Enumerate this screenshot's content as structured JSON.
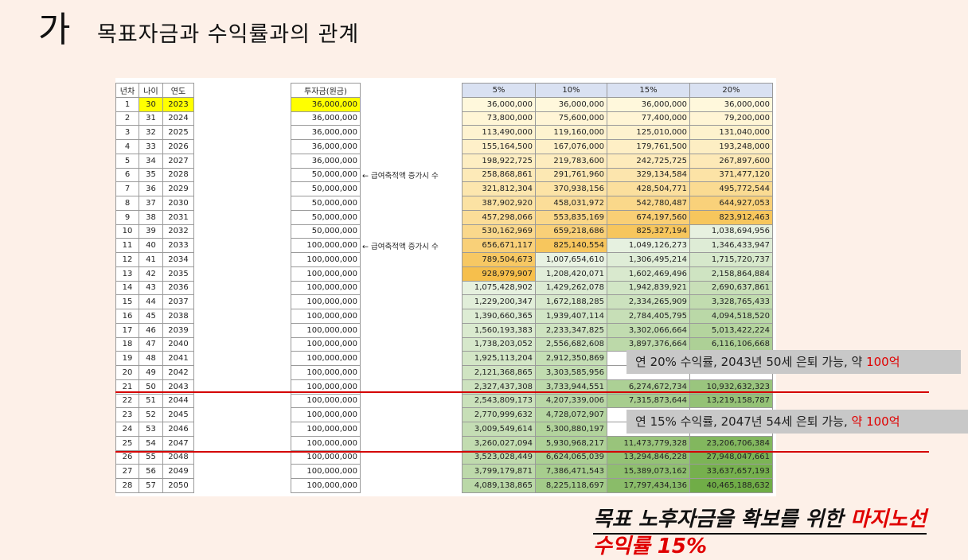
{
  "title": {
    "mark": "가",
    "text": "목표자금과 수익률과의 관계"
  },
  "headers": {
    "year_no": "년차",
    "age": "나이",
    "year": "연도",
    "invest": "투자금(원금)",
    "rates": [
      "5%",
      "10%",
      "15%",
      "20%"
    ]
  },
  "rows": [
    {
      "n": "1",
      "age": "30",
      "year": "2023",
      "inv": "36,000,000",
      "note": "",
      "v": [
        "36,000,000",
        "36,000,000",
        "36,000,000",
        "36,000,000"
      ]
    },
    {
      "n": "2",
      "age": "31",
      "year": "2024",
      "inv": "36,000,000",
      "note": "",
      "v": [
        "73,800,000",
        "75,600,000",
        "77,400,000",
        "79,200,000"
      ]
    },
    {
      "n": "3",
      "age": "32",
      "year": "2025",
      "inv": "36,000,000",
      "note": "",
      "v": [
        "113,490,000",
        "119,160,000",
        "125,010,000",
        "131,040,000"
      ]
    },
    {
      "n": "4",
      "age": "33",
      "year": "2026",
      "inv": "36,000,000",
      "note": "",
      "v": [
        "155,164,500",
        "167,076,000",
        "179,761,500",
        "193,248,000"
      ]
    },
    {
      "n": "5",
      "age": "34",
      "year": "2027",
      "inv": "36,000,000",
      "note": "",
      "v": [
        "198,922,725",
        "219,783,600",
        "242,725,725",
        "267,897,600"
      ]
    },
    {
      "n": "6",
      "age": "35",
      "year": "2028",
      "inv": "50,000,000",
      "note": "← 급여축적액 증가시 수",
      "v": [
        "258,868,861",
        "291,761,960",
        "329,134,584",
        "371,477,120"
      ]
    },
    {
      "n": "7",
      "age": "36",
      "year": "2029",
      "inv": "50,000,000",
      "note": "",
      "v": [
        "321,812,304",
        "370,938,156",
        "428,504,771",
        "495,772,544"
      ]
    },
    {
      "n": "8",
      "age": "37",
      "year": "2030",
      "inv": "50,000,000",
      "note": "",
      "v": [
        "387,902,920",
        "458,031,972",
        "542,780,487",
        "644,927,053"
      ]
    },
    {
      "n": "9",
      "age": "38",
      "year": "2031",
      "inv": "50,000,000",
      "note": "",
      "v": [
        "457,298,066",
        "553,835,169",
        "674,197,560",
        "823,912,463"
      ]
    },
    {
      "n": "10",
      "age": "39",
      "year": "2032",
      "inv": "50,000,000",
      "note": "",
      "v": [
        "530,162,969",
        "659,218,686",
        "825,327,194",
        "1,038,694,956"
      ]
    },
    {
      "n": "11",
      "age": "40",
      "year": "2033",
      "inv": "100,000,000",
      "note": "← 급여축적액 증가시 수",
      "v": [
        "656,671,117",
        "825,140,554",
        "1,049,126,273",
        "1,346,433,947"
      ]
    },
    {
      "n": "12",
      "age": "41",
      "year": "2034",
      "inv": "100,000,000",
      "note": "",
      "v": [
        "789,504,673",
        "1,007,654,610",
        "1,306,495,214",
        "1,715,720,737"
      ]
    },
    {
      "n": "13",
      "age": "42",
      "year": "2035",
      "inv": "100,000,000",
      "note": "",
      "v": [
        "928,979,907",
        "1,208,420,071",
        "1,602,469,496",
        "2,158,864,884"
      ]
    },
    {
      "n": "14",
      "age": "43",
      "year": "2036",
      "inv": "100,000,000",
      "note": "",
      "v": [
        "1,075,428,902",
        "1,429,262,078",
        "1,942,839,921",
        "2,690,637,861"
      ]
    },
    {
      "n": "15",
      "age": "44",
      "year": "2037",
      "inv": "100,000,000",
      "note": "",
      "v": [
        "1,229,200,347",
        "1,672,188,285",
        "2,334,265,909",
        "3,328,765,433"
      ]
    },
    {
      "n": "16",
      "age": "45",
      "year": "2038",
      "inv": "100,000,000",
      "note": "",
      "v": [
        "1,390,660,365",
        "1,939,407,114",
        "2,784,405,795",
        "4,094,518,520"
      ]
    },
    {
      "n": "17",
      "age": "46",
      "year": "2039",
      "inv": "100,000,000",
      "note": "",
      "v": [
        "1,560,193,383",
        "2,233,347,825",
        "3,302,066,664",
        "5,013,422,224"
      ]
    },
    {
      "n": "18",
      "age": "47",
      "year": "2040",
      "inv": "100,000,000",
      "note": "",
      "v": [
        "1,738,203,052",
        "2,556,682,608",
        "3,897,376,664",
        "6,116,106,668"
      ]
    },
    {
      "n": "19",
      "age": "48",
      "year": "2041",
      "inv": "100,000,000",
      "note": "",
      "v": [
        "1,925,113,204",
        "2,912,350,869",
        "",
        ""
      ]
    },
    {
      "n": "20",
      "age": "49",
      "year": "2042",
      "inv": "100,000,000",
      "note": "",
      "v": [
        "2,121,368,865",
        "3,303,585,956",
        "",
        ""
      ]
    },
    {
      "n": "21",
      "age": "50",
      "year": "2043",
      "inv": "100,000,000",
      "note": "",
      "v": [
        "2,327,437,308",
        "3,733,944,551",
        "6,274,672,734",
        "10,932,632,323"
      ]
    },
    {
      "n": "22",
      "age": "51",
      "year": "2044",
      "inv": "100,000,000",
      "note": "",
      "v": [
        "2,543,809,173",
        "4,207,339,006",
        "7,315,873,644",
        "13,219,158,787"
      ]
    },
    {
      "n": "23",
      "age": "52",
      "year": "2045",
      "inv": "100,000,000",
      "note": "",
      "v": [
        "2,770,999,632",
        "4,728,072,907",
        "",
        ""
      ]
    },
    {
      "n": "24",
      "age": "53",
      "year": "2046",
      "inv": "100,000,000",
      "note": "",
      "v": [
        "3,009,549,614",
        "5,300,880,197",
        "",
        ""
      ]
    },
    {
      "n": "25",
      "age": "54",
      "year": "2047",
      "inv": "100,000,000",
      "note": "",
      "v": [
        "3,260,027,094",
        "5,930,968,217",
        "11,473,779,328",
        "23,206,706,384"
      ]
    },
    {
      "n": "26",
      "age": "55",
      "year": "2048",
      "inv": "100,000,000",
      "note": "",
      "v": [
        "3,523,028,449",
        "6,624,065,039",
        "13,294,846,228",
        "27,948,047,661"
      ]
    },
    {
      "n": "27",
      "age": "56",
      "year": "2049",
      "inv": "100,000,000",
      "note": "",
      "v": [
        "3,799,179,871",
        "7,386,471,543",
        "15,389,073,162",
        "33,637,657,193"
      ]
    },
    {
      "n": "28",
      "age": "57",
      "year": "2050",
      "inv": "100,000,000",
      "note": "",
      "v": [
        "4,089,138,865",
        "8,225,118,697",
        "17,797,434,136",
        "40,465,188,632"
      ]
    }
  ],
  "callouts": {
    "c20_text": "연 20% 수익률, 2043년 50세 은퇴 가능, 약 ",
    "c20_red": "100억",
    "c15_text": "연 15% 수익률, 2047년 54세 은퇴 가능, ",
    "c15_red": "약 100억"
  },
  "bottom": {
    "line1_black": "목표 노후자금을 확보를 위한 ",
    "line1_red": "마지노선",
    "line2": "수익률 15%"
  },
  "colors": {
    "yellow": "#ffff00",
    "header_blue": "#d9e1f2",
    "red": "#e00000",
    "callout_gray": "#c8c8c8"
  }
}
